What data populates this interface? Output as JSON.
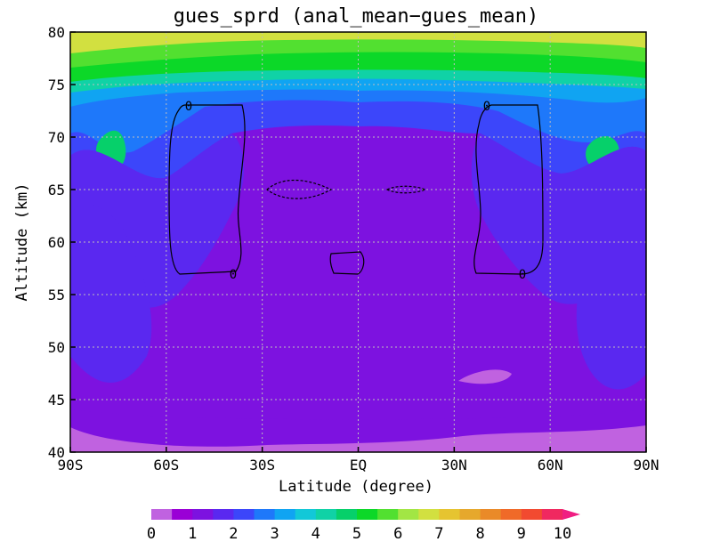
{
  "chart_data": {
    "type": "heatmap",
    "title": "gues_sprd (anal_mean−gues_mean)",
    "xlabel": "Latitude (degree)",
    "ylabel": "Altitude (km)",
    "xlim": [
      -90,
      90
    ],
    "ylim": [
      40,
      80
    ],
    "x_ticks": [
      -90,
      -60,
      -30,
      0,
      30,
      60,
      90
    ],
    "x_tick_labels": [
      "90S",
      "60S",
      "30S",
      "EQ",
      "30N",
      "60N",
      "90N"
    ],
    "y_ticks": [
      40,
      45,
      50,
      55,
      60,
      65,
      70,
      75,
      80
    ],
    "y_tick_labels": [
      "40",
      "45",
      "50",
      "55",
      "60",
      "65",
      "70",
      "75",
      "80"
    ],
    "grid": true,
    "colorbar": {
      "min": 0,
      "max": 10,
      "step": 0.5,
      "extend": "max",
      "tick_values": [
        0,
        1,
        2,
        3,
        4,
        5,
        6,
        7,
        8,
        9,
        10
      ],
      "tick_labels": [
        "0",
        "1",
        "2",
        "3",
        "4",
        "5",
        "6",
        "7",
        "8",
        "9",
        "10"
      ],
      "colors": [
        "#c062e0",
        "#9a00d6",
        "#7d12e0",
        "#5a28f0",
        "#3c46fa",
        "#1e78fa",
        "#10a4f2",
        "#12c8d8",
        "#10d2a6",
        "#06d06a",
        "#0cd828",
        "#52e030",
        "#a2e644",
        "#d2e040",
        "#e6c430",
        "#e6a82c",
        "#ea8a28",
        "#f06a28",
        "#f24a30",
        "#f02860",
        "#f01e82"
      ]
    },
    "fill_levels_bottom_to_top": [
      {
        "altitude": 40,
        "value": 0.5
      },
      {
        "altitude": 41.5,
        "value": 1.0
      },
      {
        "altitude": 44,
        "value": 1.2
      },
      {
        "altitude": 50,
        "value": 1.4
      },
      {
        "altitude": 55,
        "value": 1.8
      },
      {
        "altitude": 60,
        "value": 2.2
      },
      {
        "altitude": 63,
        "value": 1.6
      },
      {
        "altitude": 66,
        "value": 1.6
      },
      {
        "altitude": 70,
        "value": 2.4
      },
      {
        "altitude": 73,
        "value": 3.2
      },
      {
        "altitude": 75,
        "value": 4.5
      },
      {
        "altitude": 77,
        "value": 5.5
      },
      {
        "altitude": 79,
        "value": 6.5
      },
      {
        "altitude": 80,
        "value": 7.0
      }
    ],
    "contour_label": "0"
  }
}
